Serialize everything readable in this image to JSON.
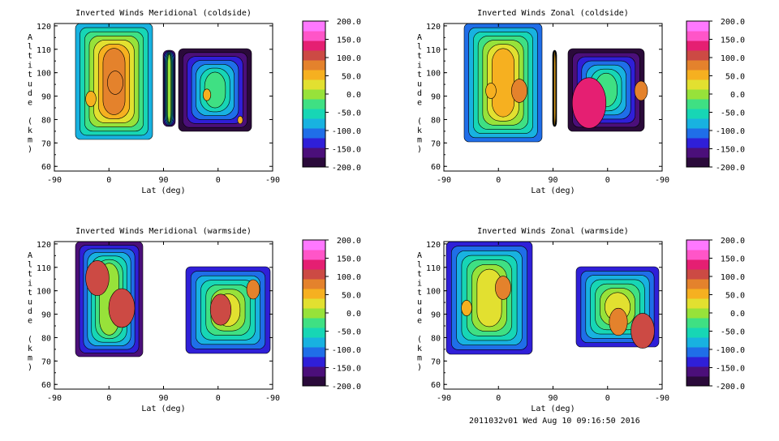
{
  "footer": {
    "stamp": "2011032v01 Wed Aug 10 09:16:50 2016"
  },
  "colors": [
    "#2a0a3a",
    "#4b0f7a",
    "#2f1fd8",
    "#1f6ee8",
    "#18b2e0",
    "#17d6b5",
    "#3fe083",
    "#97e23a",
    "#e2e030",
    "#f6b020",
    "#e4822c",
    "#cc4a44",
    "#e51f72",
    "#ff55c8",
    "#ff78ff"
  ],
  "chart_data": [
    {
      "type": "contour",
      "title": "Inverted Winds Meridional (coldside)",
      "xlabel": "Lat (deg)",
      "ylabel": "Altitude (km)",
      "x_ticks": [
        "-90",
        "0",
        "90",
        "0",
        "-90"
      ],
      "y_ticks": [
        "120",
        "110",
        "100",
        "90",
        "80",
        "70",
        "60"
      ],
      "ylim": [
        58,
        121
      ],
      "colorbar": {
        "ticks": [
          "200.0",
          "150.0",
          "100.0",
          "50.0",
          "0.0",
          "-50.0",
          "-100.0",
          "-150.0",
          "-200.0"
        ],
        "range": [
          -200,
          200
        ]
      }
    },
    {
      "type": "contour",
      "title": "Inverted Winds Zonal (coldside)",
      "xlabel": "Lat (deg)",
      "ylabel": "Altitude (km)",
      "x_ticks": [
        "-90",
        "0",
        "90",
        "0",
        "-90"
      ],
      "y_ticks": [
        "120",
        "110",
        "100",
        "90",
        "80",
        "70",
        "60"
      ],
      "ylim": [
        58,
        121
      ],
      "colorbar": {
        "ticks": [
          "200.0",
          "150.0",
          "100.0",
          "50.0",
          "0.0",
          "-50.0",
          "-100.0",
          "-150.0",
          "-200.0"
        ],
        "range": [
          -200,
          200
        ]
      }
    },
    {
      "type": "contour",
      "title": "Inverted Winds Meridional (warmside)",
      "xlabel": "Lat (deg)",
      "ylabel": "Altitude (km)",
      "x_ticks": [
        "-90",
        "0",
        "90",
        "0",
        "-90"
      ],
      "y_ticks": [
        "120",
        "110",
        "100",
        "90",
        "80",
        "70",
        "60"
      ],
      "ylim": [
        58,
        121
      ],
      "colorbar": {
        "ticks": [
          "200.0",
          "150.0",
          "100.0",
          "50.0",
          "0.0",
          "-50.0",
          "-100.0",
          "-150.0",
          "-200.0"
        ],
        "range": [
          -200,
          200
        ]
      }
    },
    {
      "type": "contour",
      "title": "Inverted Winds Zonal (warmside)",
      "xlabel": "Lat (deg)",
      "ylabel": "Altitude (km)",
      "x_ticks": [
        "-90",
        "0",
        "90",
        "0",
        "-90"
      ],
      "y_ticks": [
        "120",
        "110",
        "100",
        "90",
        "80",
        "70",
        "60"
      ],
      "ylim": [
        58,
        121
      ],
      "colorbar": {
        "ticks": [
          "200.0",
          "150.0",
          "100.0",
          "50.0",
          "0.0",
          "-50.0",
          "-100.0",
          "-150.0",
          "-200.0"
        ],
        "range": [
          -200,
          200
        ]
      }
    }
  ]
}
